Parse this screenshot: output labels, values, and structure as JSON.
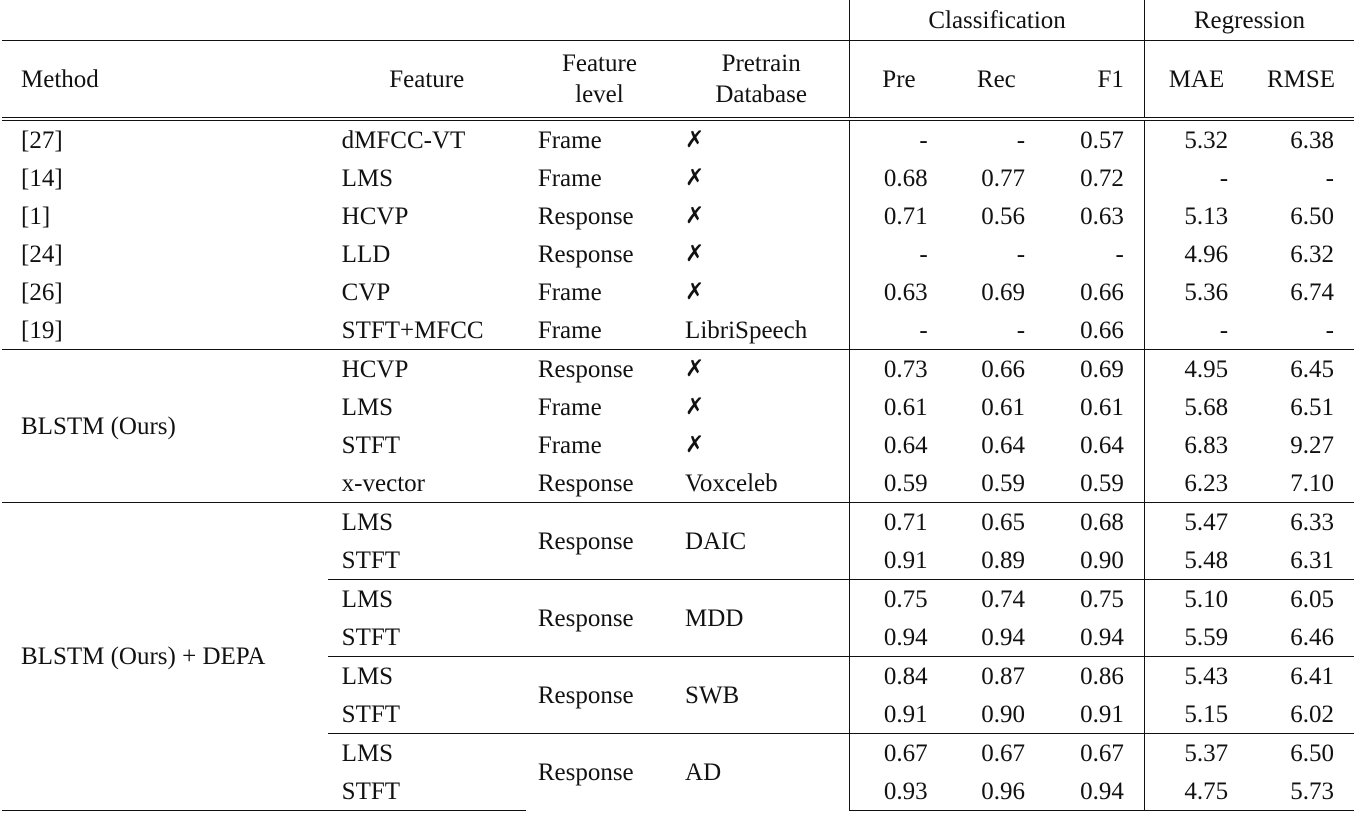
{
  "header": {
    "groups": {
      "classification": "Classification",
      "regression": "Regression"
    },
    "columns": {
      "method": "Method",
      "feature": "Feature",
      "feature_level_1": "Feature",
      "feature_level_2": "level",
      "pretrain_1": "Pretrain",
      "pretrain_2": "Database",
      "pre": "Pre",
      "rec": "Rec",
      "f1": "F1",
      "mae": "MAE",
      "rmse": "RMSE"
    }
  },
  "prior_rows": [
    {
      "method": "[27]",
      "feature": "dMFCC-VT",
      "level": "Frame",
      "db": "✗",
      "pre": "-",
      "rec": "-",
      "f1": "0.57",
      "mae": "5.32",
      "rmse": "6.38"
    },
    {
      "method": "[14]",
      "feature": "LMS",
      "level": "Frame",
      "db": "✗",
      "pre": "0.68",
      "rec": "0.77",
      "f1": "0.72",
      "mae": "-",
      "rmse": "-"
    },
    {
      "method": "[1]",
      "feature": "HCVP",
      "level": "Response",
      "db": "✗",
      "pre": "0.71",
      "rec": "0.56",
      "f1": "0.63",
      "mae": "5.13",
      "rmse": "6.50"
    },
    {
      "method": "[24]",
      "feature": "LLD",
      "level": "Response",
      "db": "✗",
      "pre": "-",
      "rec": "-",
      "f1": "-",
      "mae": "4.96",
      "rmse": "6.32"
    },
    {
      "method": "[26]",
      "feature": "CVP",
      "level": "Frame",
      "db": "✗",
      "pre": "0.63",
      "rec": "0.69",
      "f1": "0.66",
      "mae": "5.36",
      "rmse": "6.74"
    },
    {
      "method": "[19]",
      "feature": "STFT+MFCC",
      "level": "Frame",
      "db": "LibriSpeech",
      "pre": "-",
      "rec": "-",
      "f1": "0.66",
      "mae": "-",
      "rmse": "-"
    }
  ],
  "blstm": {
    "method": "BLSTM (Ours)",
    "rows": [
      {
        "feature": "HCVP",
        "level": "Response",
        "db": "✗",
        "pre": "0.73",
        "rec": "0.66",
        "f1": "0.69",
        "mae": "4.95",
        "rmse": "6.45"
      },
      {
        "feature": "LMS",
        "level": "Frame",
        "db": "✗",
        "pre": "0.61",
        "rec": "0.61",
        "f1": "0.61",
        "mae": "5.68",
        "rmse": "6.51"
      },
      {
        "feature": "STFT",
        "level": "Frame",
        "db": "✗",
        "pre": "0.64",
        "rec": "0.64",
        "f1": "0.64",
        "mae": "6.83",
        "rmse": "9.27"
      },
      {
        "feature": "x-vector",
        "level": "Response",
        "db": "Voxceleb",
        "pre": "0.59",
        "rec": "0.59",
        "f1": "0.59",
        "mae": "6.23",
        "rmse": "7.10"
      }
    ]
  },
  "depa": {
    "method": "BLSTM (Ours) + DEPA",
    "groups": [
      {
        "level": "Response",
        "db": "DAIC",
        "rows": [
          {
            "feature": "LMS",
            "pre": "0.71",
            "rec": "0.65",
            "f1": "0.68",
            "mae": "5.47",
            "rmse": "6.33"
          },
          {
            "feature": "STFT",
            "pre": "0.91",
            "rec": "0.89",
            "f1": "0.90",
            "mae": "5.48",
            "rmse": "6.31"
          }
        ]
      },
      {
        "level": "Response",
        "db": "MDD",
        "rows": [
          {
            "feature": "LMS",
            "pre": "0.75",
            "rec": "0.74",
            "f1": "0.75",
            "mae": "5.10",
            "rmse": "6.05"
          },
          {
            "feature": "STFT",
            "pre": "0.94",
            "rec": "0.94",
            "f1": "0.94",
            "mae": "5.59",
            "rmse": "6.46"
          }
        ]
      },
      {
        "level": "Response",
        "db": "SWB",
        "rows": [
          {
            "feature": "LMS",
            "pre": "0.84",
            "rec": "0.87",
            "f1": "0.86",
            "mae": "5.43",
            "rmse": "6.41"
          },
          {
            "feature": "STFT",
            "pre": "0.91",
            "rec": "0.90",
            "f1": "0.91",
            "mae": "5.15",
            "rmse": "6.02"
          }
        ]
      },
      {
        "level": "Response",
        "db": "AD",
        "rows": [
          {
            "feature": "LMS",
            "pre": "0.67",
            "rec": "0.67",
            "f1": "0.67",
            "mae": "5.37",
            "rmse": "6.50"
          },
          {
            "feature": "STFT",
            "pre": "0.93",
            "rec": "0.96",
            "f1": "0.94",
            "mae": "4.75",
            "rmse": "5.73"
          }
        ]
      }
    ]
  }
}
